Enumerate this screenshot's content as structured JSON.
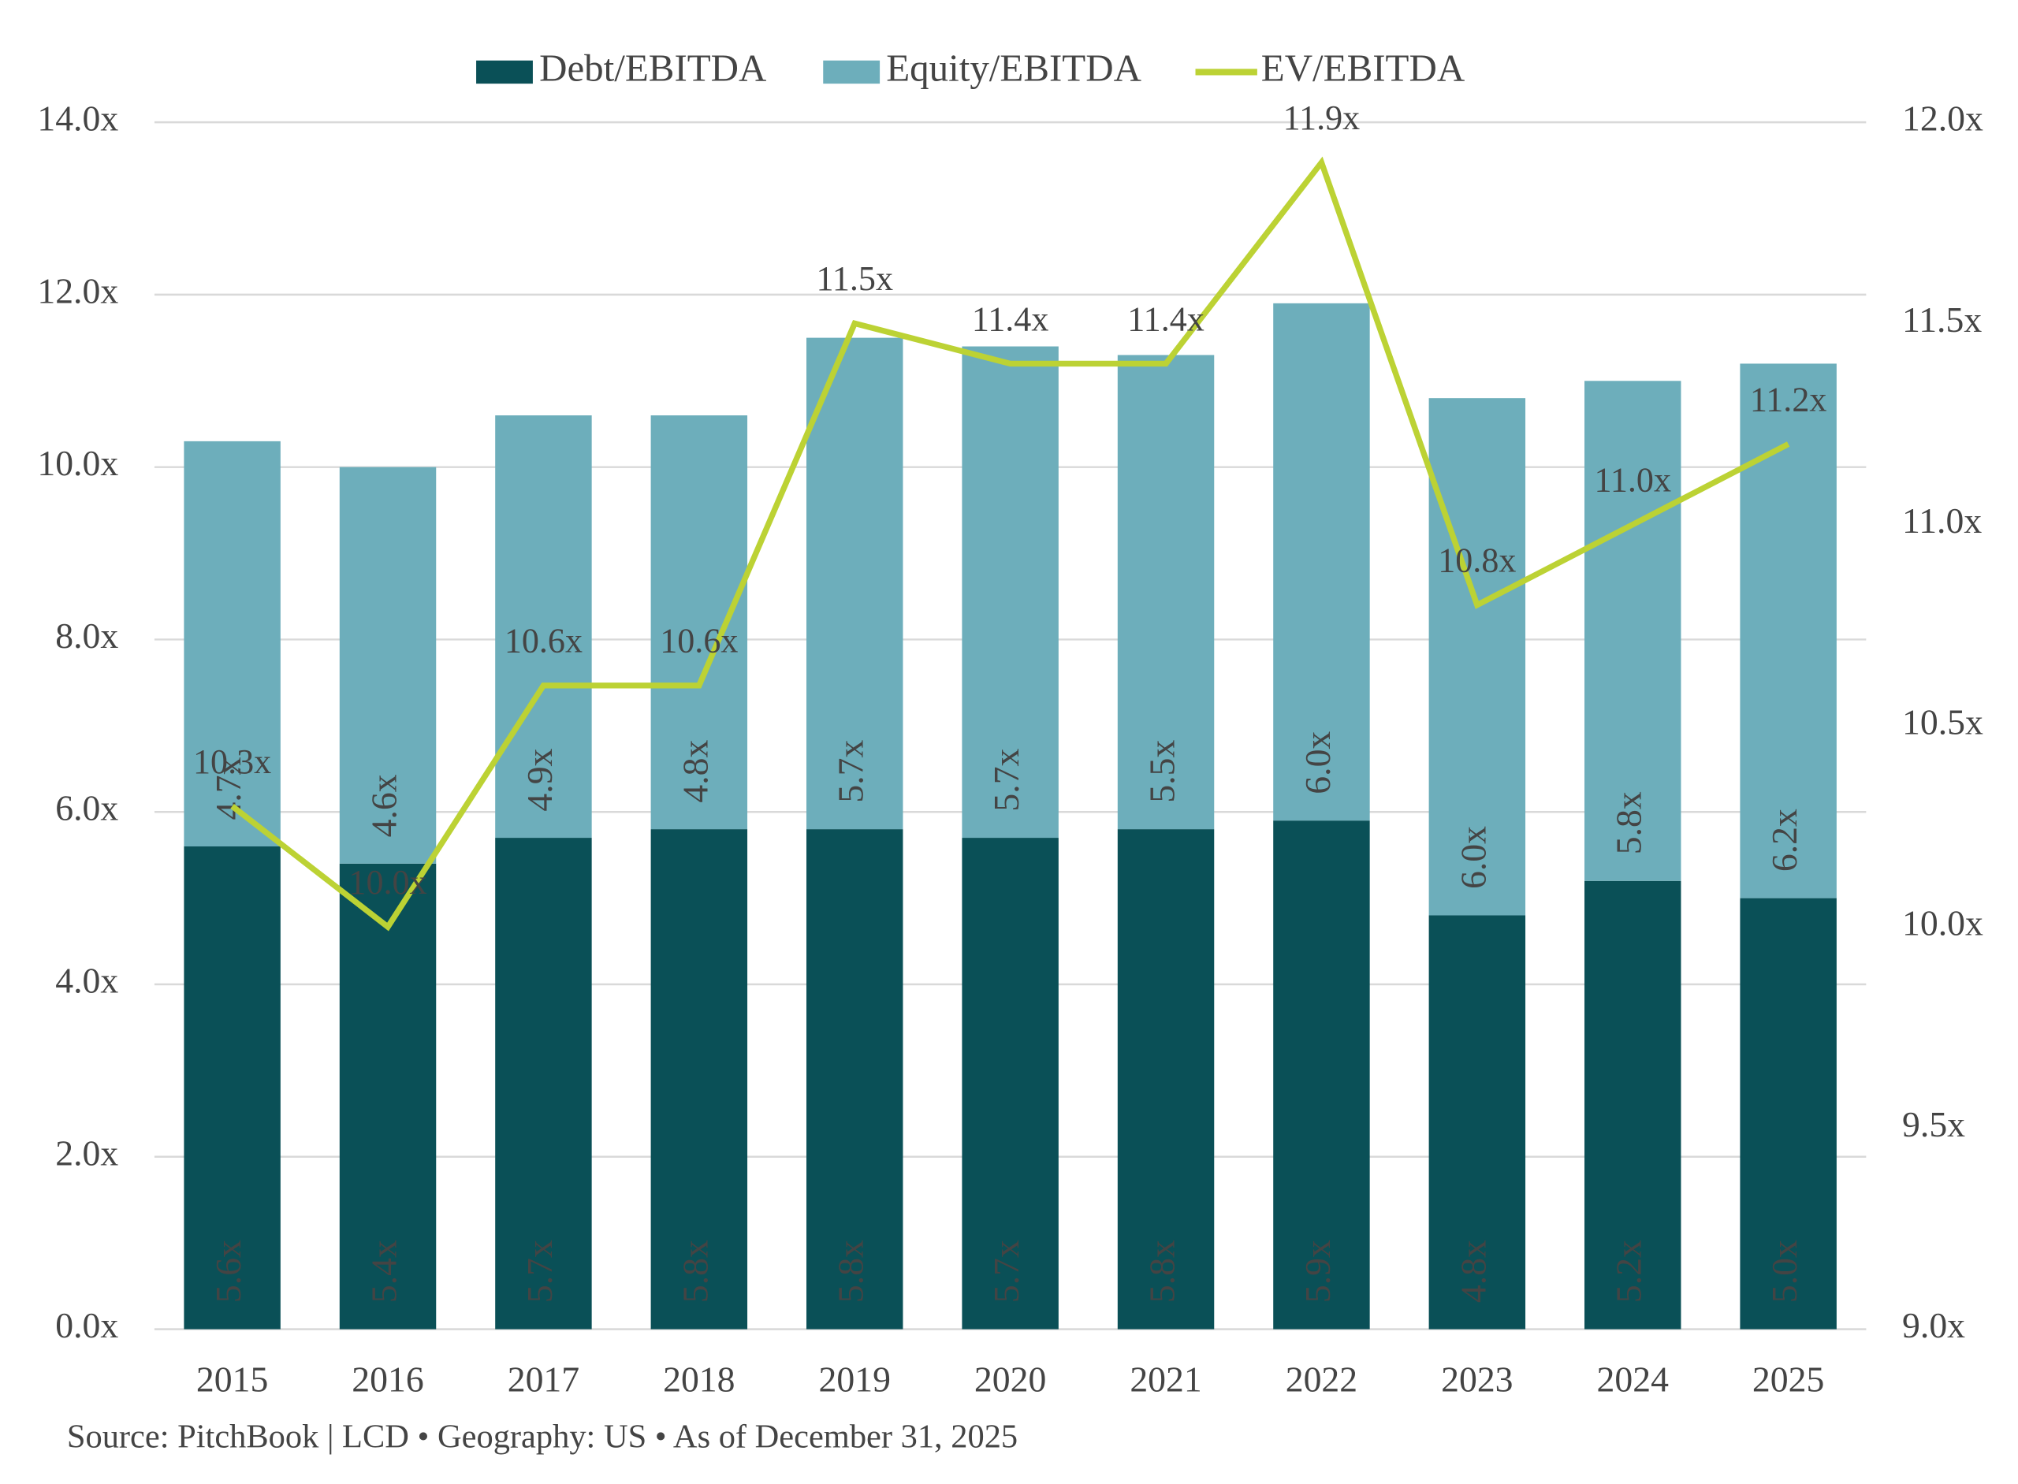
{
  "chart_data": {
    "type": "bar",
    "stacked": true,
    "source": "Source: PitchBook | LCD  •  Geography: US  •  As of December 31, 2025",
    "categories": [
      "2015",
      "2016",
      "2017",
      "2018",
      "2019",
      "2020",
      "2021",
      "2022",
      "2023",
      "2024",
      "2025"
    ],
    "series": [
      {
        "name": "Debt/EBITDA",
        "color": "#0a5057",
        "values": [
          5.6,
          5.4,
          5.7,
          5.8,
          5.8,
          5.7,
          5.8,
          5.9,
          4.8,
          5.2,
          5.0
        ],
        "value_labels": [
          "5.6x",
          "5.4x",
          "5.7x",
          "5.8x",
          "5.8x",
          "5.7x",
          "5.8x",
          "5.9x",
          "4.8x",
          "5.2x",
          "5.0x"
        ]
      },
      {
        "name": "Equity/EBITDA",
        "color": "#6daebb",
        "values": [
          4.7,
          4.6,
          4.9,
          4.8,
          5.7,
          5.7,
          5.5,
          6.0,
          6.0,
          5.8,
          6.2
        ],
        "value_labels": [
          "4.7x",
          "4.6x",
          "4.9x",
          "4.8x",
          "5.7x",
          "5.7x",
          "5.5x",
          "6.0x",
          "6.0x",
          "5.8x",
          "6.2x"
        ]
      },
      {
        "name": "EV/EBITDA",
        "color": "#bcd234",
        "type": "line",
        "axis": "y2",
        "values": [
          10.3,
          10.0,
          10.6,
          10.6,
          11.5,
          11.4,
          11.4,
          11.9,
          10.8,
          11.0,
          11.2
        ],
        "value_labels": [
          "10.3x",
          "10.0x",
          "10.6x",
          "10.6x",
          "11.5x",
          "11.4x",
          "11.4x",
          "11.9x",
          "10.8x",
          "11.0x",
          "11.2x"
        ]
      }
    ],
    "ylim": [
      0,
      14
    ],
    "yticks": [
      {
        "value": 0,
        "label": "0.0x"
      },
      {
        "value": 2,
        "label": "2.0x"
      },
      {
        "value": 4,
        "label": "4.0x"
      },
      {
        "value": 6,
        "label": "6.0x"
      },
      {
        "value": 8,
        "label": "8.0x"
      },
      {
        "value": 10,
        "label": "10.0x"
      },
      {
        "value": 12,
        "label": "12.0x"
      },
      {
        "value": 14,
        "label": "14.0x"
      }
    ],
    "y2lim": [
      9,
      12
    ],
    "y2ticks": [
      {
        "value": 9,
        "label": "9.0x"
      },
      {
        "value": 9.5,
        "label": "9.5x"
      },
      {
        "value": 10,
        "label": "10.0x"
      },
      {
        "value": 10.5,
        "label": "10.5x"
      },
      {
        "value": 11,
        "label": "11.0x"
      },
      {
        "value": 11.5,
        "label": "11.5x"
      },
      {
        "value": 12,
        "label": "12.0x"
      }
    ],
    "grid": true,
    "legend": "top"
  }
}
